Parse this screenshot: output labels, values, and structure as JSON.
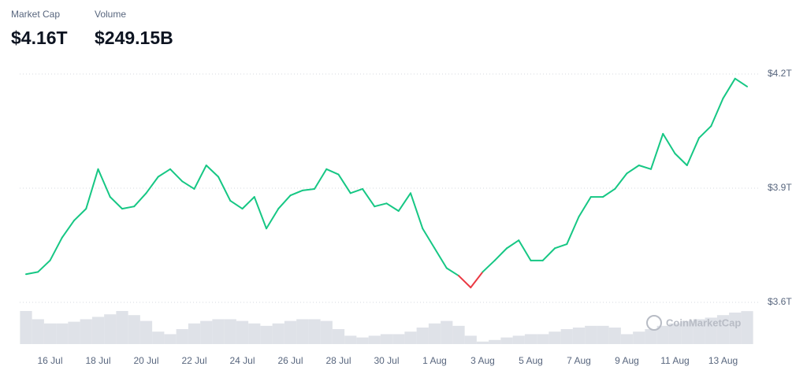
{
  "chart_data": {
    "type": "line",
    "stats": [
      {
        "label": "Market Cap",
        "value": "$4.16T"
      },
      {
        "label": "Volume",
        "value": "$249.15B"
      }
    ],
    "watermark": "CoinMarketCap",
    "categories": [
      null,
      null,
      "16 Jul",
      null,
      null,
      null,
      "18 Jul",
      null,
      null,
      null,
      "20 Jul",
      null,
      null,
      null,
      "22 Jul",
      null,
      null,
      null,
      "24 Jul",
      null,
      null,
      null,
      "26 Jul",
      null,
      null,
      null,
      "28 Jul",
      null,
      null,
      null,
      "30 Jul",
      null,
      null,
      null,
      "1 Aug",
      null,
      null,
      null,
      "3 Aug",
      null,
      null,
      null,
      "5 Aug",
      null,
      null,
      null,
      "7 Aug",
      null,
      null,
      null,
      "9 Aug",
      null,
      null,
      null,
      "11 Aug",
      null,
      null,
      null,
      "13 Aug",
      null,
      null
    ],
    "series": [
      {
        "name": "Market Cap",
        "color": "#16c784",
        "down_color": "#ea3943",
        "values": [
          3.674,
          3.68,
          3.71,
          3.77,
          3.815,
          3.846,
          3.95,
          3.877,
          3.846,
          3.852,
          3.887,
          3.93,
          3.95,
          3.918,
          3.898,
          3.96,
          3.93,
          3.867,
          3.846,
          3.877,
          3.794,
          3.846,
          3.881,
          3.894,
          3.898,
          3.95,
          3.936,
          3.887,
          3.898,
          3.852,
          3.86,
          3.84,
          3.887,
          3.794,
          3.742,
          3.69,
          3.67,
          3.639,
          3.68,
          3.71,
          3.742,
          3.763,
          3.71,
          3.71,
          3.742,
          3.753,
          3.825,
          3.877,
          3.877,
          3.898,
          3.939,
          3.96,
          3.95,
          4.043,
          3.991,
          3.96,
          4.032,
          4.063,
          4.136,
          4.188,
          4.167
        ]
      },
      {
        "name": "Volume",
        "color": "#dfe2e8",
        "values": [
          250,
          188,
          156,
          156,
          169,
          188,
          206,
          225,
          250,
          219,
          175,
          94,
          75,
          113,
          156,
          175,
          188,
          188,
          175,
          156,
          138,
          156,
          175,
          188,
          188,
          175,
          113,
          63,
          50,
          63,
          75,
          75,
          94,
          125,
          156,
          175,
          138,
          63,
          19,
          31,
          50,
          63,
          75,
          75,
          94,
          113,
          125,
          138,
          138,
          125,
          75,
          94,
          113,
          138,
          156,
          175,
          188,
          200,
          219,
          238,
          249.15
        ]
      }
    ],
    "ylim": [
      3.6,
      4.2
    ],
    "yticks": [
      {
        "value": 3.6,
        "label": "$3.6T"
      },
      {
        "value": 3.9,
        "label": "$3.9T"
      },
      {
        "value": 4.2,
        "label": "$4.2T"
      }
    ],
    "grid": true
  }
}
